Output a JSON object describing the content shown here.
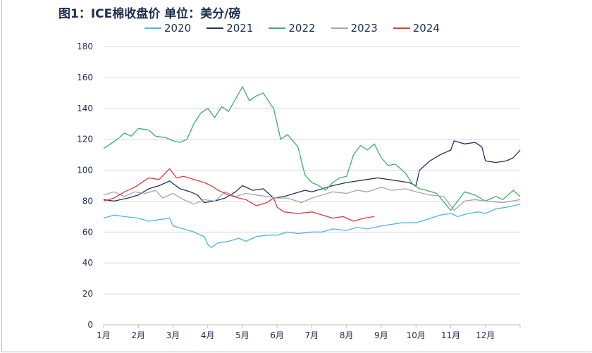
{
  "chart_data": {
    "type": "line",
    "title": "图1：ICE棉收盘价 单位：美分/磅",
    "xlabel": "",
    "ylabel": "",
    "ylim": [
      0,
      180
    ],
    "yticks": [
      0,
      20,
      40,
      60,
      80,
      100,
      120,
      140,
      160,
      180
    ],
    "xlim": [
      1,
      13
    ],
    "xtick_labels": [
      "1月",
      "2月",
      "3月",
      "4月",
      "5月",
      "6月",
      "7月",
      "8月",
      "9月",
      "10月",
      "11月",
      "12月"
    ],
    "grid": "horizontal",
    "legend_position": "top",
    "series": [
      {
        "name": "2020",
        "color": "#4bb8d8",
        "x": [
          1,
          1.3,
          1.6,
          2,
          2.3,
          2.6,
          2.9,
          3.0,
          3.3,
          3.6,
          3.9,
          4.0,
          4.1,
          4.3,
          4.6,
          4.9,
          5.1,
          5.4,
          5.7,
          6.0,
          6.3,
          6.6,
          7.0,
          7.3,
          7.6,
          8.0,
          8.3,
          8.6,
          9.0,
          9.3,
          9.6,
          10,
          10.3,
          10.7,
          11,
          11.2,
          11.5,
          11.8,
          12,
          12.3,
          12.6,
          13
        ],
        "y": [
          69,
          71,
          70,
          69,
          67,
          68,
          69,
          64,
          62,
          60,
          57,
          52,
          50,
          53,
          54,
          56,
          54,
          57,
          58,
          58,
          60,
          59,
          60,
          60,
          62,
          61,
          63,
          62,
          64,
          65,
          66,
          66,
          68,
          71,
          72,
          70,
          72,
          73,
          72,
          75,
          76,
          78
        ]
      },
      {
        "name": "2021",
        "color": "#24335e",
        "x": [
          1,
          1.3,
          1.7,
          2,
          2.3,
          2.6,
          2.9,
          3.2,
          3.5,
          3.7,
          3.9,
          4.2,
          4.5,
          4.8,
          5,
          5.3,
          5.6,
          5.9,
          6.2,
          6.5,
          6.8,
          7.0,
          7.3,
          7.6,
          8.0,
          8.3,
          8.6,
          8.9,
          9.2,
          9.5,
          9.8,
          10,
          10.1,
          10.4,
          10.7,
          11.0,
          11.1,
          11.4,
          11.7,
          11.9,
          12,
          12.3,
          12.6,
          12.8,
          13
        ],
        "y": [
          81,
          80,
          82,
          84,
          88,
          90,
          93,
          88,
          86,
          84,
          79,
          80,
          82,
          86,
          90,
          87,
          88,
          82,
          83,
          85,
          87,
          86,
          88,
          90,
          92,
          93,
          94,
          95,
          94,
          93,
          92,
          90,
          100,
          106,
          110,
          113,
          119,
          117,
          118,
          115,
          106,
          105,
          106,
          108,
          113
        ]
      },
      {
        "name": "2022",
        "color": "#3fae6a",
        "x": [
          1,
          1.2,
          1.4,
          1.6,
          1.8,
          2.0,
          2.3,
          2.5,
          2.8,
          3.0,
          3.2,
          3.4,
          3.6,
          3.8,
          4.0,
          4.2,
          4.4,
          4.6,
          4.8,
          5.0,
          5.2,
          5.4,
          5.6,
          5.8,
          5.9,
          6.1,
          6.3,
          6.6,
          6.8,
          7.0,
          7.2,
          7.4,
          7.6,
          7.8,
          8.0,
          8.2,
          8.4,
          8.6,
          8.8,
          9.0,
          9.2,
          9.4,
          9.7,
          9.9,
          10.1,
          10.3,
          10.6,
          11.0,
          11.2,
          11.4,
          11.7,
          12.0,
          12.3,
          12.5,
          12.8,
          13
        ],
        "y": [
          114,
          117,
          120,
          124,
          122,
          127,
          126,
          122,
          121,
          119,
          118,
          120,
          130,
          137,
          140,
          134,
          141,
          138,
          146,
          154,
          145,
          148,
          150,
          143,
          140,
          120,
          123,
          115,
          97,
          92,
          90,
          87,
          92,
          95,
          96,
          110,
          116,
          113,
          117,
          108,
          103,
          104,
          98,
          91,
          88,
          87,
          85,
          74,
          80,
          86,
          84,
          80,
          83,
          81,
          87,
          83
        ]
      },
      {
        "name": "2023",
        "color": "#a6a6a6",
        "x": [
          1,
          1.3,
          1.6,
          1.9,
          2.2,
          2.5,
          2.7,
          3.0,
          3.3,
          3.6,
          3.9,
          4.2,
          4.5,
          4.8,
          5.1,
          5.4,
          5.7,
          6,
          6.3,
          6.7,
          7,
          7.3,
          7.6,
          8,
          8.3,
          8.6,
          9,
          9.3,
          9.7,
          10,
          10.4,
          10.8,
          11.1,
          11.4,
          11.7,
          12,
          12.5,
          13
        ],
        "y": [
          84,
          86,
          83,
          86,
          85,
          87,
          82,
          85,
          81,
          78,
          81,
          80,
          86,
          83,
          85,
          84,
          83,
          82,
          82,
          79,
          82,
          84,
          86,
          85,
          87,
          86,
          89,
          87,
          88,
          86,
          84,
          83,
          74,
          80,
          81,
          80,
          79,
          81
        ]
      },
      {
        "name": "2024",
        "color": "#e03a3a",
        "x": [
          1,
          1.3,
          1.6,
          1.9,
          2.3,
          2.6,
          2.9,
          3.1,
          3.3,
          3.6,
          3.9,
          4.1,
          4.3,
          4.6,
          4.9,
          5.1,
          5.4,
          5.7,
          5.9,
          6.0,
          6.2,
          6.6,
          7.0,
          7.3,
          7.6,
          7.9,
          8.2,
          8.5,
          8.8
        ],
        "y": [
          80,
          82,
          86,
          89,
          95,
          94,
          101,
          95,
          96,
          94,
          92,
          90,
          87,
          84,
          82,
          81,
          77,
          79,
          82,
          76,
          73,
          72,
          73,
          71,
          69,
          70,
          67,
          69,
          70
        ]
      }
    ]
  }
}
